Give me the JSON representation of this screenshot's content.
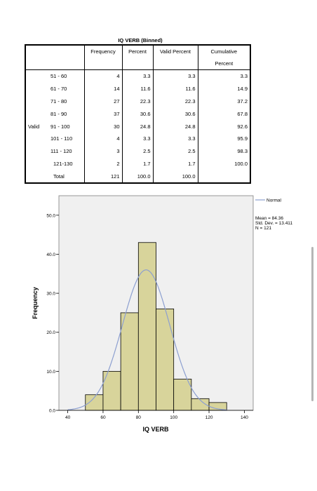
{
  "table": {
    "title": "IQ VERB (Binned)",
    "headers": [
      "Frequency",
      "Percent",
      "Valid Percent",
      "Cumulative",
      "Percent"
    ],
    "group_label": "Valid",
    "rows": [
      {
        "cat": "51 - 60",
        "freq": "4",
        "pct": "3.3",
        "vpct": "3.3",
        "cum": "3.3"
      },
      {
        "cat": "61 - 70",
        "freq": "14",
        "pct": "11.6",
        "vpct": "11.6",
        "cum": "14.9"
      },
      {
        "cat": "71 - 80",
        "freq": "27",
        "pct": "22.3",
        "vpct": "22.3",
        "cum": "37.2"
      },
      {
        "cat": "81 - 90",
        "freq": "37",
        "pct": "30.6",
        "vpct": "30.6",
        "cum": "67.8"
      },
      {
        "cat": "91 - 100",
        "freq": "30",
        "pct": "24.8",
        "vpct": "24.8",
        "cum": "92.6"
      },
      {
        "cat": "101 - 110",
        "freq": "4",
        "pct": "3.3",
        "vpct": "3.3",
        "cum": "95.9"
      },
      {
        "cat": "111 - 120",
        "freq": "3",
        "pct": "2.5",
        "vpct": "2.5",
        "cum": "98.3"
      },
      {
        "cat": "121-130",
        "freq": "2",
        "pct": "1.7",
        "vpct": "1.7",
        "cum": "100.0"
      },
      {
        "cat": "Total",
        "freq": "121",
        "pct": "100.0",
        "vpct": "100.0",
        "cum": ""
      }
    ]
  },
  "chart_data": {
    "type": "bar",
    "title": "",
    "xlabel": "IQ VERB",
    "ylabel": "Frequency",
    "xlim": [
      35,
      145
    ],
    "ylim": [
      0,
      55
    ],
    "xticks": [
      40,
      60,
      80,
      100,
      120,
      140
    ],
    "yticks": [
      0,
      10,
      20,
      30,
      40,
      50
    ],
    "ytick_labels": [
      "0.0",
      "10.0",
      "20.0",
      "30.0",
      "40.0",
      "50.0"
    ],
    "bin_width": 10,
    "bins": [
      {
        "start": 50,
        "end": 60,
        "value": 4
      },
      {
        "start": 60,
        "end": 70,
        "value": 10
      },
      {
        "start": 70,
        "end": 80,
        "value": 25
      },
      {
        "start": 80,
        "end": 90,
        "value": 43
      },
      {
        "start": 90,
        "end": 100,
        "value": 26
      },
      {
        "start": 100,
        "end": 110,
        "value": 8
      },
      {
        "start": 110,
        "end": 120,
        "value": 3
      },
      {
        "start": 120,
        "end": 130,
        "value": 2
      }
    ],
    "normal_curve": {
      "mean": 84.36,
      "sd": 13.411,
      "n": 121
    },
    "legend": {
      "label": "Normal",
      "placement": "right"
    },
    "stats_text": [
      "Mean = 84.36",
      "Std. Dev. = 13.411",
      "N = 121"
    ],
    "colors": {
      "bar_fill": "#d8d49b",
      "bar_stroke": "#000000",
      "curve": "#8c9fd0",
      "plot_bg": "#f0f0f0"
    }
  }
}
